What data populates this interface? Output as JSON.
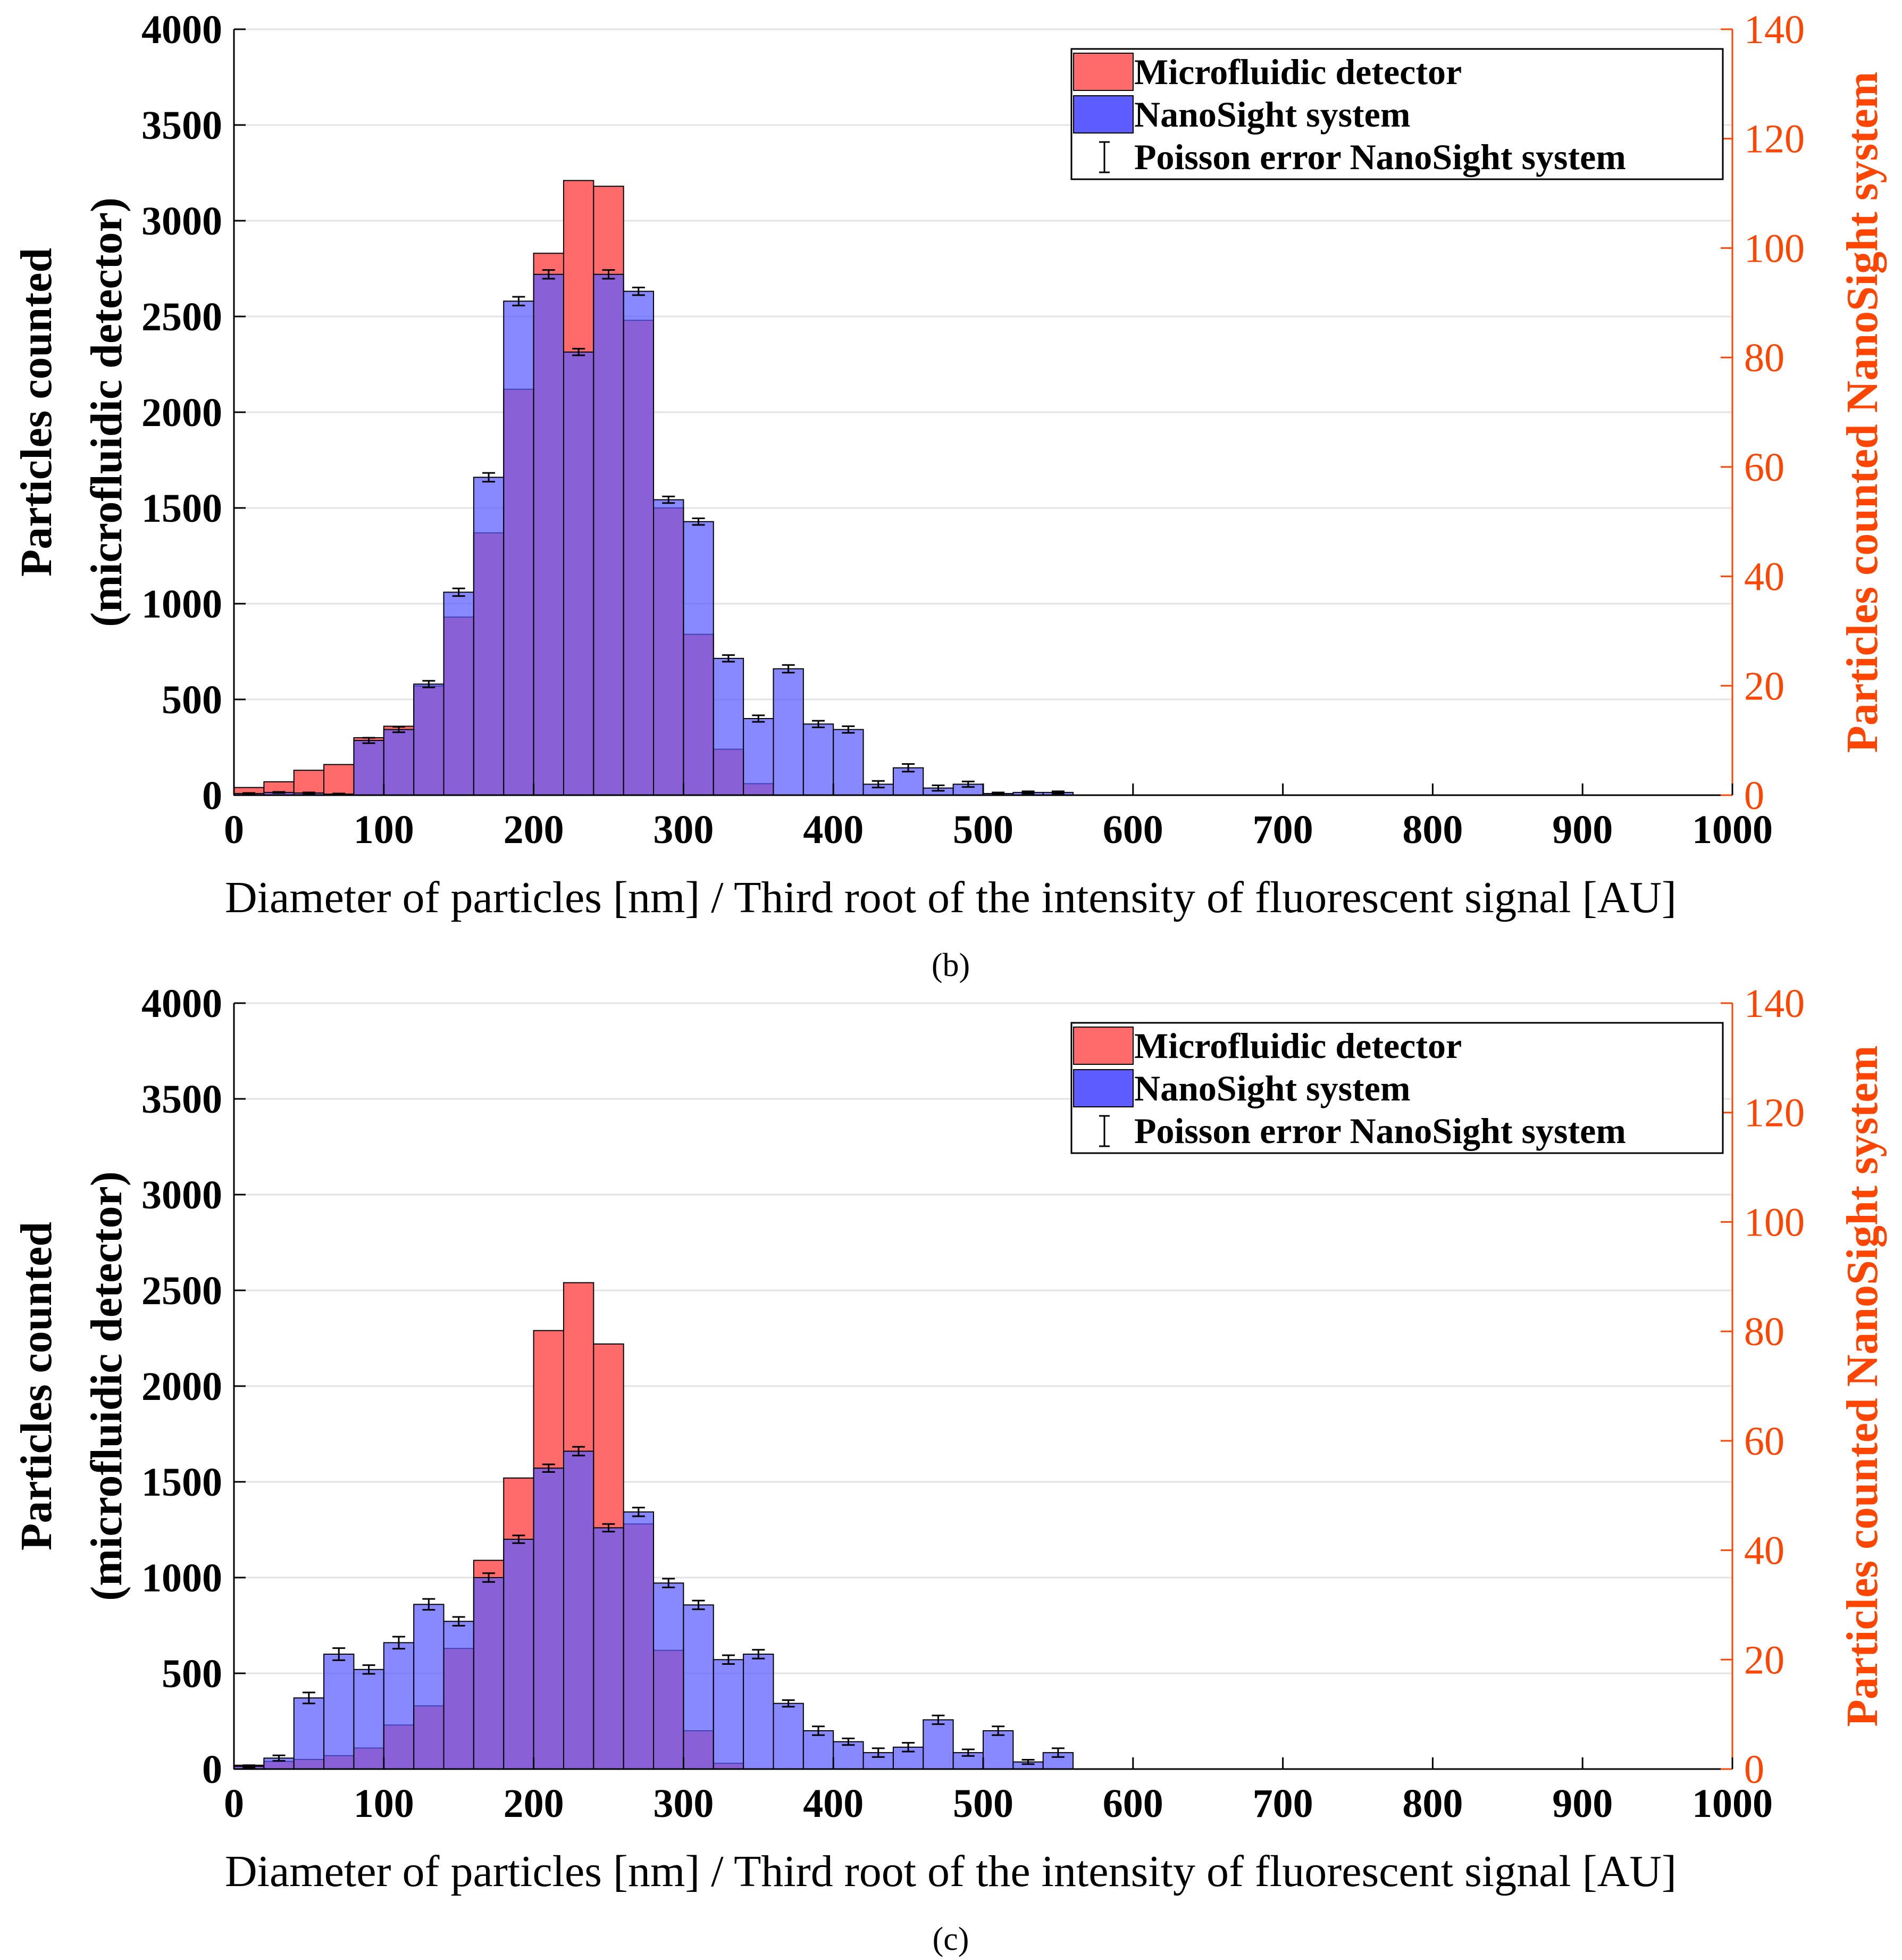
{
  "colors": {
    "micro": "#ff6b6b",
    "nano": "#5c5cff",
    "right_axis": "#ff4500"
  },
  "chart_data": [
    {
      "type": "bar",
      "panel": "b",
      "caption": "(b)",
      "xlabel": "Diameter of particles [nm] / Third root of the intensity of fluorescent signal [AU]",
      "ylabel_line1": "Particles counted",
      "ylabel_line2": "(microfluidic detector)",
      "ylabel_right": "Particles counted NanoSight system",
      "xlim": [
        0,
        1000
      ],
      "ylim": [
        0,
        4000
      ],
      "ylim_right": [
        0,
        140
      ],
      "xticks": [
        "0",
        "100",
        "200",
        "300",
        "400",
        "500",
        "600",
        "700",
        "800",
        "900",
        "1000"
      ],
      "yticks": [
        "0",
        "500",
        "1000",
        "1500",
        "2000",
        "2500",
        "3000",
        "3500",
        "4000"
      ],
      "yticks_right": [
        "0",
        "20",
        "40",
        "60",
        "80",
        "100",
        "120",
        "140"
      ],
      "bin_width": 20,
      "legend": [
        "Microfluidic detector",
        "NanoSight system",
        "Poisson error NanoSight system"
      ],
      "series": [
        {
          "name": "Microfluidic detector",
          "axis": "left",
          "x": [
            10,
            30,
            50,
            70,
            90,
            110,
            130,
            150,
            170,
            190,
            210,
            230,
            250,
            270,
            290,
            310,
            330,
            350
          ],
          "values": [
            40,
            70,
            130,
            160,
            300,
            360,
            570,
            930,
            1370,
            2120,
            2830,
            3210,
            3180,
            2480,
            1500,
            840,
            240,
            60
          ]
        },
        {
          "name": "NanoSight system",
          "axis": "right",
          "x": [
            10,
            30,
            50,
            70,
            90,
            110,
            130,
            150,
            170,
            190,
            210,
            230,
            250,
            270,
            290,
            310,
            330,
            350,
            370,
            390,
            410,
            430,
            450,
            470,
            490,
            510,
            530,
            550
          ],
          "values": [
            0.3,
            0.5,
            0.4,
            0.2,
            10,
            12,
            20.3,
            37.1,
            58.1,
            90.3,
            95.2,
            81,
            95.2,
            92.1,
            54,
            50,
            25,
            14,
            23.1,
            13,
            12,
            2,
            5,
            1.3,
            2,
            0.3,
            0.5,
            0.5
          ],
          "errors": [
            0.1,
            0.1,
            0.1,
            0.1,
            0.5,
            0.5,
            0.6,
            0.7,
            0.8,
            0.8,
            0.8,
            0.6,
            0.8,
            0.7,
            0.6,
            0.6,
            0.6,
            0.6,
            0.7,
            0.6,
            0.6,
            0.6,
            0.7,
            0.5,
            0.5,
            0.2,
            0.2,
            0.2
          ]
        }
      ]
    },
    {
      "type": "bar",
      "panel": "c",
      "caption": "(c)",
      "xlabel": "Diameter of particles [nm] / Third root of the intensity of fluorescent signal [AU]",
      "ylabel_line1": "Particles counted",
      "ylabel_line2": "(microfluidic detector)",
      "ylabel_right": "Particles counted NanoSight system",
      "xlim": [
        0,
        1000
      ],
      "ylim": [
        0,
        4000
      ],
      "ylim_right": [
        0,
        140
      ],
      "xticks": [
        "0",
        "100",
        "200",
        "300",
        "400",
        "500",
        "600",
        "700",
        "800",
        "900",
        "1000"
      ],
      "yticks": [
        "0",
        "500",
        "1000",
        "1500",
        "2000",
        "2500",
        "3000",
        "3500",
        "4000"
      ],
      "yticks_right": [
        "0",
        "20",
        "40",
        "60",
        "80",
        "100",
        "120",
        "140"
      ],
      "bin_width": 20,
      "legend": [
        "Microfluidic detector",
        "NanoSight system",
        "Poisson error NanoSight system"
      ],
      "series": [
        {
          "name": "Microfluidic detector",
          "axis": "left",
          "x": [
            10,
            30,
            50,
            70,
            90,
            110,
            130,
            150,
            170,
            190,
            210,
            230,
            250,
            270,
            290,
            310,
            330
          ],
          "values": [
            20,
            40,
            50,
            70,
            110,
            230,
            330,
            630,
            1090,
            1520,
            2290,
            2540,
            2220,
            1280,
            620,
            200,
            30
          ]
        },
        {
          "name": "NanoSight system",
          "axis": "right",
          "x": [
            10,
            30,
            50,
            70,
            90,
            110,
            130,
            150,
            170,
            190,
            210,
            230,
            250,
            270,
            290,
            310,
            330,
            350,
            370,
            390,
            410,
            430,
            450,
            470,
            490,
            510,
            530,
            550
          ],
          "values": [
            0.5,
            2,
            13,
            21,
            18.2,
            23.1,
            30.1,
            27,
            35,
            42,
            55,
            58.1,
            44.1,
            47,
            34,
            30,
            20,
            21,
            12,
            7,
            5,
            3,
            4,
            9,
            3,
            7,
            1.3,
            3
          ],
          "errors": [
            0.2,
            0.5,
            1.0,
            1.1,
            0.8,
            1.1,
            1.0,
            0.8,
            0.8,
            0.7,
            0.7,
            0.8,
            0.7,
            0.8,
            0.8,
            0.8,
            0.8,
            0.8,
            0.6,
            0.8,
            0.6,
            0.8,
            0.8,
            0.8,
            0.6,
            0.8,
            0.4,
            0.8
          ]
        }
      ]
    }
  ]
}
